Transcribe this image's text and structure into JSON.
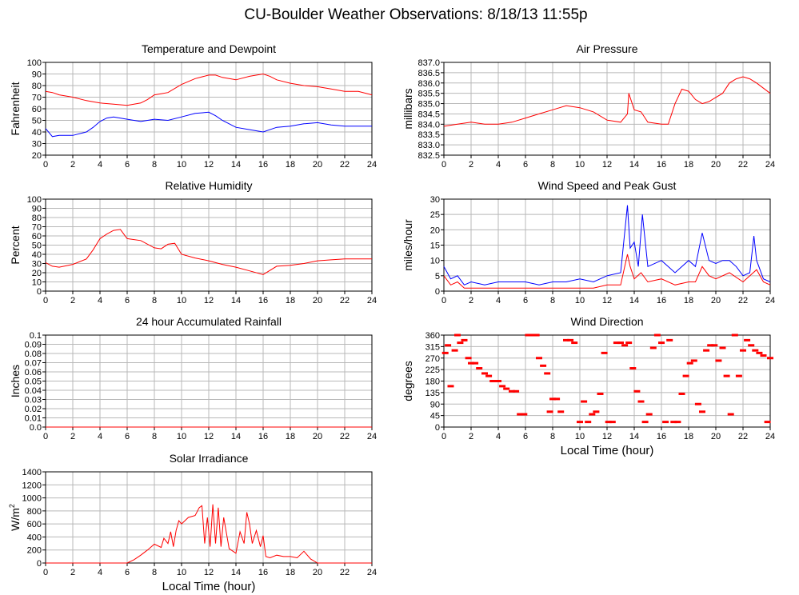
{
  "title": "CU-Boulder Weather Observations: 8/18/13 11:55p",
  "chart_data": [
    {
      "id": "temp",
      "type": "line",
      "title": "Temperature and Dewpoint",
      "ylabel": "Fahrenheit",
      "xlabel": "",
      "xlim": [
        0,
        24
      ],
      "ylim": [
        20,
        100
      ],
      "x_ticks": [
        0,
        2,
        4,
        6,
        8,
        10,
        12,
        14,
        16,
        18,
        20,
        22,
        24
      ],
      "y_ticks": [
        20,
        30,
        40,
        50,
        60,
        70,
        80,
        90,
        100
      ],
      "y_tick_labels": [
        "20",
        "30",
        "40",
        "50",
        "60",
        "70",
        "80",
        "90",
        "100"
      ],
      "grid": true,
      "series": [
        {
          "color": "#ff0000",
          "x": [
            0,
            0.5,
            1,
            2,
            3,
            4,
            5,
            6,
            7,
            7.5,
            8,
            8.5,
            9,
            10,
            11,
            12,
            12.5,
            13,
            14,
            15,
            16,
            16.5,
            17,
            18,
            19,
            20,
            21,
            22,
            23,
            24
          ],
          "values": [
            75,
            74,
            72,
            70,
            67,
            65,
            64,
            63,
            65,
            68,
            72,
            73,
            74,
            81,
            86,
            89,
            89,
            87,
            85,
            88,
            90,
            88,
            85,
            82,
            80,
            79,
            77,
            75,
            75,
            72
          ]
        },
        {
          "color": "#0000ff",
          "x": [
            0,
            0.5,
            1,
            2,
            3,
            3.5,
            4,
            4.5,
            5,
            6,
            7,
            8,
            9,
            10,
            11,
            12,
            12.5,
            13,
            14,
            15,
            16,
            17,
            18,
            19,
            20,
            21,
            22,
            23,
            24
          ],
          "values": [
            43,
            36,
            37,
            37,
            40,
            44,
            49,
            52,
            53,
            51,
            49,
            51,
            50,
            53,
            56,
            57,
            54,
            50,
            44,
            42,
            40,
            44,
            45,
            47,
            48,
            46,
            45,
            45,
            45
          ]
        }
      ]
    },
    {
      "id": "pressure",
      "type": "line",
      "title": "Air Pressure",
      "ylabel": "millibars",
      "xlabel": "",
      "xlim": [
        0,
        24
      ],
      "ylim": [
        832.5,
        837.0
      ],
      "x_ticks": [
        0,
        2,
        4,
        6,
        8,
        10,
        12,
        14,
        16,
        18,
        20,
        22,
        24
      ],
      "y_ticks": [
        832.5,
        833.0,
        833.5,
        834.0,
        834.5,
        835.0,
        835.5,
        836.0,
        836.5,
        837.0
      ],
      "y_tick_labels": [
        "832.5",
        "833.0",
        "833.5",
        "834.0",
        "834.5",
        "835.0",
        "835.5",
        "836.0",
        "836.5",
        "837.0"
      ],
      "grid": true,
      "series": [
        {
          "color": "#ff0000",
          "x": [
            0,
            1,
            2,
            3,
            4,
            5,
            6,
            7,
            8,
            9,
            10,
            11,
            12,
            13,
            13.5,
            13.6,
            14,
            14.5,
            15,
            16,
            16.5,
            17,
            17.5,
            18,
            18.5,
            19,
            19.5,
            20,
            20.5,
            21,
            21.5,
            22,
            22.5,
            23,
            24
          ],
          "values": [
            833.9,
            834.0,
            834.1,
            834.0,
            834.0,
            834.1,
            834.3,
            834.5,
            834.7,
            834.9,
            834.8,
            834.6,
            834.2,
            834.1,
            834.5,
            835.5,
            834.7,
            834.6,
            834.1,
            834.0,
            834.0,
            835.0,
            835.7,
            835.6,
            835.2,
            835.0,
            835.1,
            835.3,
            835.5,
            836.0,
            836.2,
            836.3,
            836.2,
            836.0,
            835.5
          ]
        }
      ]
    },
    {
      "id": "humidity",
      "type": "line",
      "title": "Relative Humidity",
      "ylabel": "Percent",
      "xlabel": "",
      "xlim": [
        0,
        24
      ],
      "ylim": [
        0,
        100
      ],
      "x_ticks": [
        0,
        2,
        4,
        6,
        8,
        10,
        12,
        14,
        16,
        18,
        20,
        22,
        24
      ],
      "y_ticks": [
        0,
        10,
        20,
        30,
        40,
        50,
        60,
        70,
        80,
        90,
        100
      ],
      "y_tick_labels": [
        "0",
        "10",
        "20",
        "30",
        "40",
        "50",
        "60",
        "70",
        "80",
        "90",
        "100"
      ],
      "grid": true,
      "series": [
        {
          "color": "#ff0000",
          "x": [
            0,
            0.5,
            1,
            2,
            3,
            3.5,
            4,
            4.5,
            5,
            5.5,
            6,
            7,
            8,
            8.5,
            9,
            9.5,
            10,
            11,
            12,
            13,
            14,
            15,
            16,
            17,
            18,
            19,
            20,
            21,
            22,
            23,
            24
          ],
          "values": [
            31,
            27,
            26,
            29,
            35,
            45,
            57,
            62,
            66,
            67,
            57,
            55,
            47,
            46,
            51,
            52,
            40,
            36,
            33,
            29,
            26,
            22,
            18,
            27,
            28,
            30,
            33,
            34,
            35,
            35,
            35
          ]
        }
      ]
    },
    {
      "id": "wind",
      "type": "line",
      "title": "Wind Speed and Peak Gust",
      "ylabel": "miles/hour",
      "xlabel": "",
      "xlim": [
        0,
        24
      ],
      "ylim": [
        0,
        30
      ],
      "x_ticks": [
        0,
        2,
        4,
        6,
        8,
        10,
        12,
        14,
        16,
        18,
        20,
        22,
        24
      ],
      "y_ticks": [
        0,
        5,
        10,
        15,
        20,
        25,
        30
      ],
      "y_tick_labels": [
        "0",
        "5",
        "10",
        "15",
        "20",
        "25",
        "30"
      ],
      "grid": true,
      "series": [
        {
          "color": "#0000ff",
          "x": [
            0,
            0.5,
            1,
            1.5,
            2,
            3,
            4,
            5,
            6,
            7,
            8,
            9,
            10,
            11,
            12,
            13,
            13.5,
            13.7,
            14,
            14.3,
            14.6,
            15,
            16,
            17,
            18,
            18.5,
            19,
            19.5,
            20,
            20.5,
            21,
            21.5,
            22,
            22.5,
            22.8,
            23,
            23.5,
            24
          ],
          "values": [
            8,
            4,
            5,
            2,
            3,
            2,
            3,
            3,
            3,
            2,
            3,
            3,
            4,
            3,
            5,
            6,
            28,
            14,
            16,
            8,
            25,
            8,
            10,
            6,
            10,
            8,
            19,
            10,
            9,
            10,
            10,
            8,
            5,
            6,
            18,
            10,
            4,
            3
          ]
        },
        {
          "color": "#ff0000",
          "x": [
            0,
            0.5,
            1,
            1.5,
            2,
            3,
            4,
            5,
            6,
            7,
            8,
            9,
            10,
            11,
            12,
            13,
            13.5,
            13.7,
            14,
            14.5,
            15,
            16,
            17,
            18,
            18.5,
            19,
            19.5,
            20,
            21,
            22,
            23,
            23.5,
            24
          ],
          "values": [
            5,
            2,
            3,
            1,
            1,
            1,
            1,
            1,
            1,
            1,
            1,
            1,
            1,
            1,
            2,
            2,
            12,
            8,
            4,
            6,
            3,
            4,
            2,
            3,
            3,
            8,
            5,
            4,
            6,
            3,
            7,
            3,
            2
          ]
        }
      ]
    },
    {
      "id": "rain",
      "type": "line",
      "title": "24 hour Accumulated Rainfall",
      "ylabel": "Inches",
      "xlabel": "",
      "xlim": [
        0,
        24
      ],
      "ylim": [
        0,
        0.1
      ],
      "x_ticks": [
        0,
        2,
        4,
        6,
        8,
        10,
        12,
        14,
        16,
        18,
        20,
        22,
        24
      ],
      "y_ticks": [
        0,
        0.01,
        0.02,
        0.03,
        0.04,
        0.05,
        0.06,
        0.07,
        0.08,
        0.09,
        0.1
      ],
      "y_tick_labels": [
        "0.0",
        "0.01",
        "0.02",
        "0.03",
        "0.04",
        "0.05",
        "0.06",
        "0.07",
        "0.08",
        "0.09",
        "0.1"
      ],
      "grid": true,
      "series": [
        {
          "color": "#ff0000",
          "x": [
            0,
            24
          ],
          "values": [
            0,
            0
          ]
        }
      ]
    },
    {
      "id": "direction",
      "type": "scatter",
      "title": "Wind Direction",
      "ylabel": "degrees",
      "xlabel": "Local Time (hour)",
      "xlim": [
        0,
        24
      ],
      "ylim": [
        0,
        360
      ],
      "x_ticks": [
        0,
        2,
        4,
        6,
        8,
        10,
        12,
        14,
        16,
        18,
        20,
        22,
        24
      ],
      "y_ticks": [
        0,
        45,
        90,
        135,
        180,
        225,
        270,
        315,
        360
      ],
      "y_tick_labels": [
        "0",
        "45",
        "90",
        "135",
        "180",
        "225",
        "270",
        "315",
        "360"
      ],
      "grid": true,
      "series": [
        {
          "color": "#ff0000",
          "x": [
            0.1,
            0.3,
            0.5,
            0.8,
            1.0,
            1.2,
            1.5,
            1.8,
            2.0,
            2.3,
            2.6,
            3.0,
            3.3,
            3.6,
            4.0,
            4.3,
            4.6,
            5.0,
            5.3,
            5.6,
            5.9,
            6.2,
            6.5,
            6.8,
            7.0,
            7.3,
            7.6,
            7.8,
            8.0,
            8.3,
            8.6,
            9.0,
            9.3,
            9.6,
            10.0,
            10.3,
            10.6,
            10.9,
            11.2,
            11.5,
            11.8,
            12.1,
            12.4,
            12.7,
            13.0,
            13.3,
            13.6,
            13.9,
            14.2,
            14.5,
            14.8,
            15.1,
            15.4,
            15.7,
            16.0,
            16.3,
            16.6,
            16.9,
            17.2,
            17.5,
            17.8,
            18.1,
            18.4,
            18.7,
            19.0,
            19.3,
            19.6,
            19.9,
            20.2,
            20.5,
            20.8,
            21.1,
            21.4,
            21.7,
            22.0,
            22.3,
            22.6,
            22.9,
            23.2,
            23.5,
            23.8,
            24.0
          ],
          "values": [
            290,
            320,
            160,
            300,
            360,
            330,
            340,
            270,
            250,
            250,
            230,
            210,
            200,
            180,
            180,
            160,
            150,
            140,
            140,
            50,
            50,
            360,
            360,
            360,
            270,
            240,
            210,
            60,
            110,
            110,
            60,
            340,
            340,
            330,
            20,
            100,
            20,
            50,
            60,
            130,
            290,
            20,
            20,
            330,
            330,
            320,
            330,
            230,
            140,
            100,
            20,
            50,
            310,
            360,
            330,
            20,
            340,
            20,
            20,
            130,
            200,
            250,
            260,
            90,
            60,
            300,
            320,
            320,
            260,
            310,
            200,
            50,
            360,
            200,
            300,
            340,
            320,
            300,
            290,
            280,
            20,
            270
          ]
        }
      ]
    },
    {
      "id": "solar",
      "type": "line",
      "title": "Solar Irradiance",
      "ylabel": "W/m",
      "ylabel_superscript": "2",
      "xlabel": "Local Time (hour)",
      "xlim": [
        0,
        24
      ],
      "ylim": [
        0,
        1400
      ],
      "x_ticks": [
        0,
        2,
        4,
        6,
        8,
        10,
        12,
        14,
        16,
        18,
        20,
        22,
        24
      ],
      "y_ticks": [
        0,
        200,
        400,
        600,
        800,
        1000,
        1200,
        1400
      ],
      "y_tick_labels": [
        "0",
        "200",
        "400",
        "600",
        "800",
        "1000",
        "1200",
        "1400"
      ],
      "grid": true,
      "series": [
        {
          "color": "#ff0000",
          "x": [
            0,
            6,
            6.5,
            7,
            7.5,
            8,
            8.5,
            8.7,
            9,
            9.2,
            9.4,
            9.6,
            9.8,
            10,
            10.5,
            11,
            11.3,
            11.5,
            11.7,
            11.9,
            12.1,
            12.3,
            12.5,
            12.7,
            12.9,
            13.1,
            13.5,
            14,
            14.3,
            14.6,
            14.8,
            15,
            15.2,
            15.5,
            15.8,
            16,
            16.2,
            16.5,
            17,
            17.5,
            18,
            18.5,
            19,
            19.5,
            20,
            24
          ],
          "values": [
            0,
            0,
            50,
            120,
            200,
            290,
            240,
            380,
            300,
            480,
            250,
            500,
            650,
            600,
            700,
            730,
            850,
            880,
            300,
            700,
            250,
            900,
            300,
            850,
            250,
            700,
            220,
            150,
            480,
            300,
            780,
            600,
            300,
            500,
            250,
            420,
            100,
            80,
            120,
            100,
            100,
            80,
            180,
            60,
            0,
            0
          ]
        }
      ]
    }
  ]
}
